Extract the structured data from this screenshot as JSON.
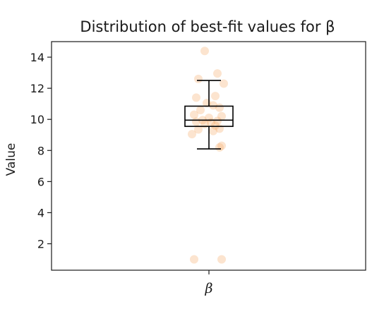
{
  "chart_data": {
    "type": "box",
    "title": "Distribution of best-fit values for β",
    "xlabel": "",
    "ylabel": "Value",
    "categories": [
      "β"
    ],
    "ylim": [
      0.3,
      15.0
    ],
    "yticks": [
      2,
      4,
      6,
      8,
      10,
      12,
      14
    ],
    "grid": false,
    "box": {
      "whisker_low": 8.1,
      "q1": 9.55,
      "median": 9.95,
      "q3": 10.85,
      "whisker_high": 12.5
    },
    "points": [
      {
        "x": -0.02,
        "y": 14.4
      },
      {
        "x": -0.05,
        "y": 12.6
      },
      {
        "x": 0.04,
        "y": 12.95
      },
      {
        "x": 0.07,
        "y": 12.3
      },
      {
        "x": -0.06,
        "y": 11.4
      },
      {
        "x": 0.03,
        "y": 11.5
      },
      {
        "x": -0.01,
        "y": 11.05
      },
      {
        "x": 0.02,
        "y": 10.9
      },
      {
        "x": 0.05,
        "y": 10.75
      },
      {
        "x": -0.04,
        "y": 10.6
      },
      {
        "x": -0.07,
        "y": 10.3
      },
      {
        "x": 0.06,
        "y": 10.2
      },
      {
        "x": 0.0,
        "y": 10.1
      },
      {
        "x": -0.03,
        "y": 9.95
      },
      {
        "x": 0.04,
        "y": 9.9
      },
      {
        "x": -0.06,
        "y": 9.85
      },
      {
        "x": 0.01,
        "y": 9.8
      },
      {
        "x": -0.02,
        "y": 9.7
      },
      {
        "x": 0.03,
        "y": 9.6
      },
      {
        "x": 0.05,
        "y": 9.4
      },
      {
        "x": -0.05,
        "y": 9.35
      },
      {
        "x": 0.02,
        "y": 9.25
      },
      {
        "x": -0.08,
        "y": 9.05
      },
      {
        "x": 0.06,
        "y": 8.3
      },
      {
        "x": 0.05,
        "y": 8.2
      },
      {
        "x": -0.07,
        "y": 1.0
      },
      {
        "x": 0.06,
        "y": 1.0
      }
    ],
    "colors": {
      "points": "#f4a460",
      "box": "#000000",
      "median": "#000000"
    }
  }
}
